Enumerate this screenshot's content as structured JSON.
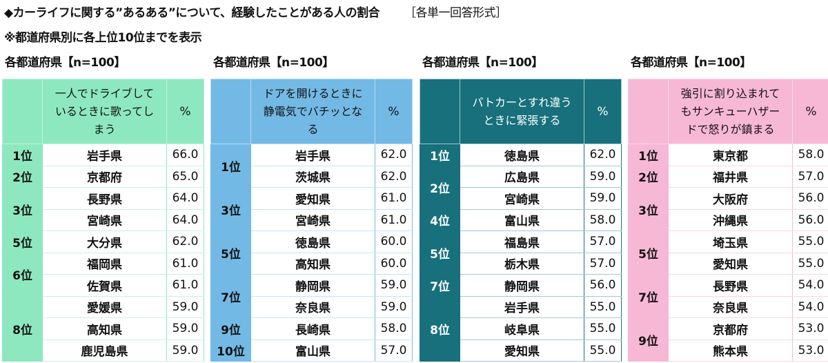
{
  "header": {
    "title": "◆カーライフに関する”あるある”について、経験したことがある人の割合",
    "format": "［各単一回答形式］",
    "subtitle": "※都道府県別に各上位10位までを表示"
  },
  "chart_data": [
    {
      "type": "table",
      "sample_label": "各都道府県【n=100】",
      "title": "一人でドライブしているときに歌ってしまう",
      "value_header": "%",
      "color": "#8de8c0",
      "rows": [
        {
          "rank": "1位",
          "prefecture": "岩手県",
          "value": "66.0"
        },
        {
          "rank": "2位",
          "prefecture": "京都府",
          "value": "65.0"
        },
        {
          "rank": "3位",
          "prefecture": "長野県",
          "value": "64.0"
        },
        {
          "rank": "3位",
          "prefecture": "宮崎県",
          "value": "64.0"
        },
        {
          "rank": "5位",
          "prefecture": "大分県",
          "value": "62.0"
        },
        {
          "rank": "6位",
          "prefecture": "福岡県",
          "value": "61.0"
        },
        {
          "rank": "6位",
          "prefecture": "佐賀県",
          "value": "61.0"
        },
        {
          "rank": "8位",
          "prefecture": "愛媛県",
          "value": "59.0"
        },
        {
          "rank": "8位",
          "prefecture": "高知県",
          "value": "59.0"
        },
        {
          "rank": "8位",
          "prefecture": "鹿児島県",
          "value": "59.0"
        }
      ]
    },
    {
      "type": "table",
      "sample_label": "各都道府県【n=100】",
      "title": "ドアを開けるときに静電気でバチッとなる",
      "value_header": "%",
      "color": "#73b9e6",
      "rows": [
        {
          "rank": "1位",
          "prefecture": "岩手県",
          "value": "62.0"
        },
        {
          "rank": "1位",
          "prefecture": "茨城県",
          "value": "62.0"
        },
        {
          "rank": "3位",
          "prefecture": "愛知県",
          "value": "61.0"
        },
        {
          "rank": "3位",
          "prefecture": "宮崎県",
          "value": "61.0"
        },
        {
          "rank": "5位",
          "prefecture": "徳島県",
          "value": "60.0"
        },
        {
          "rank": "5位",
          "prefecture": "高知県",
          "value": "60.0"
        },
        {
          "rank": "7位",
          "prefecture": "静岡県",
          "value": "59.0"
        },
        {
          "rank": "7位",
          "prefecture": "奈良県",
          "value": "59.0"
        },
        {
          "rank": "9位",
          "prefecture": "長崎県",
          "value": "58.0"
        },
        {
          "rank": "10位",
          "prefecture": "富山県",
          "value": "57.0"
        }
      ]
    },
    {
      "type": "table",
      "sample_label": "各都道府県【n=100】",
      "title": "パトカーとすれ違うときに緊張する",
      "value_header": "%",
      "color": "#17707c",
      "rows": [
        {
          "rank": "1位",
          "prefecture": "徳島県",
          "value": "62.0"
        },
        {
          "rank": "2位",
          "prefecture": "広島県",
          "value": "59.0"
        },
        {
          "rank": "2位",
          "prefecture": "宮崎県",
          "value": "59.0"
        },
        {
          "rank": "4位",
          "prefecture": "富山県",
          "value": "58.0"
        },
        {
          "rank": "5位",
          "prefecture": "福島県",
          "value": "57.0"
        },
        {
          "rank": "5位",
          "prefecture": "栃木県",
          "value": "57.0"
        },
        {
          "rank": "7位",
          "prefecture": "静岡県",
          "value": "56.0"
        },
        {
          "rank": "8位",
          "prefecture": "岩手県",
          "value": "55.0"
        },
        {
          "rank": "8位",
          "prefecture": "岐阜県",
          "value": "55.0"
        },
        {
          "rank": "8位",
          "prefecture": "愛知県",
          "value": "55.0"
        }
      ]
    },
    {
      "type": "table",
      "sample_label": "各都道府県【n=100】",
      "title": "強引に割り込まれてもサンキューハザードで怒りが鎮まる",
      "value_header": "%",
      "color": "#f7b8d6",
      "rows": [
        {
          "rank": "1位",
          "prefecture": "東京都",
          "value": "58.0"
        },
        {
          "rank": "2位",
          "prefecture": "福井県",
          "value": "57.0"
        },
        {
          "rank": "3位",
          "prefecture": "大阪府",
          "value": "56.0"
        },
        {
          "rank": "3位",
          "prefecture": "沖縄県",
          "value": "56.0"
        },
        {
          "rank": "5位",
          "prefecture": "埼玉県",
          "value": "55.0"
        },
        {
          "rank": "5位",
          "prefecture": "愛知県",
          "value": "55.0"
        },
        {
          "rank": "7位",
          "prefecture": "長野県",
          "value": "54.0"
        },
        {
          "rank": "7位",
          "prefecture": "奈良県",
          "value": "54.0"
        },
        {
          "rank": "9位",
          "prefecture": "京都府",
          "value": "53.0"
        },
        {
          "rank": "9位",
          "prefecture": "熊本県",
          "value": "53.0"
        }
      ]
    }
  ]
}
